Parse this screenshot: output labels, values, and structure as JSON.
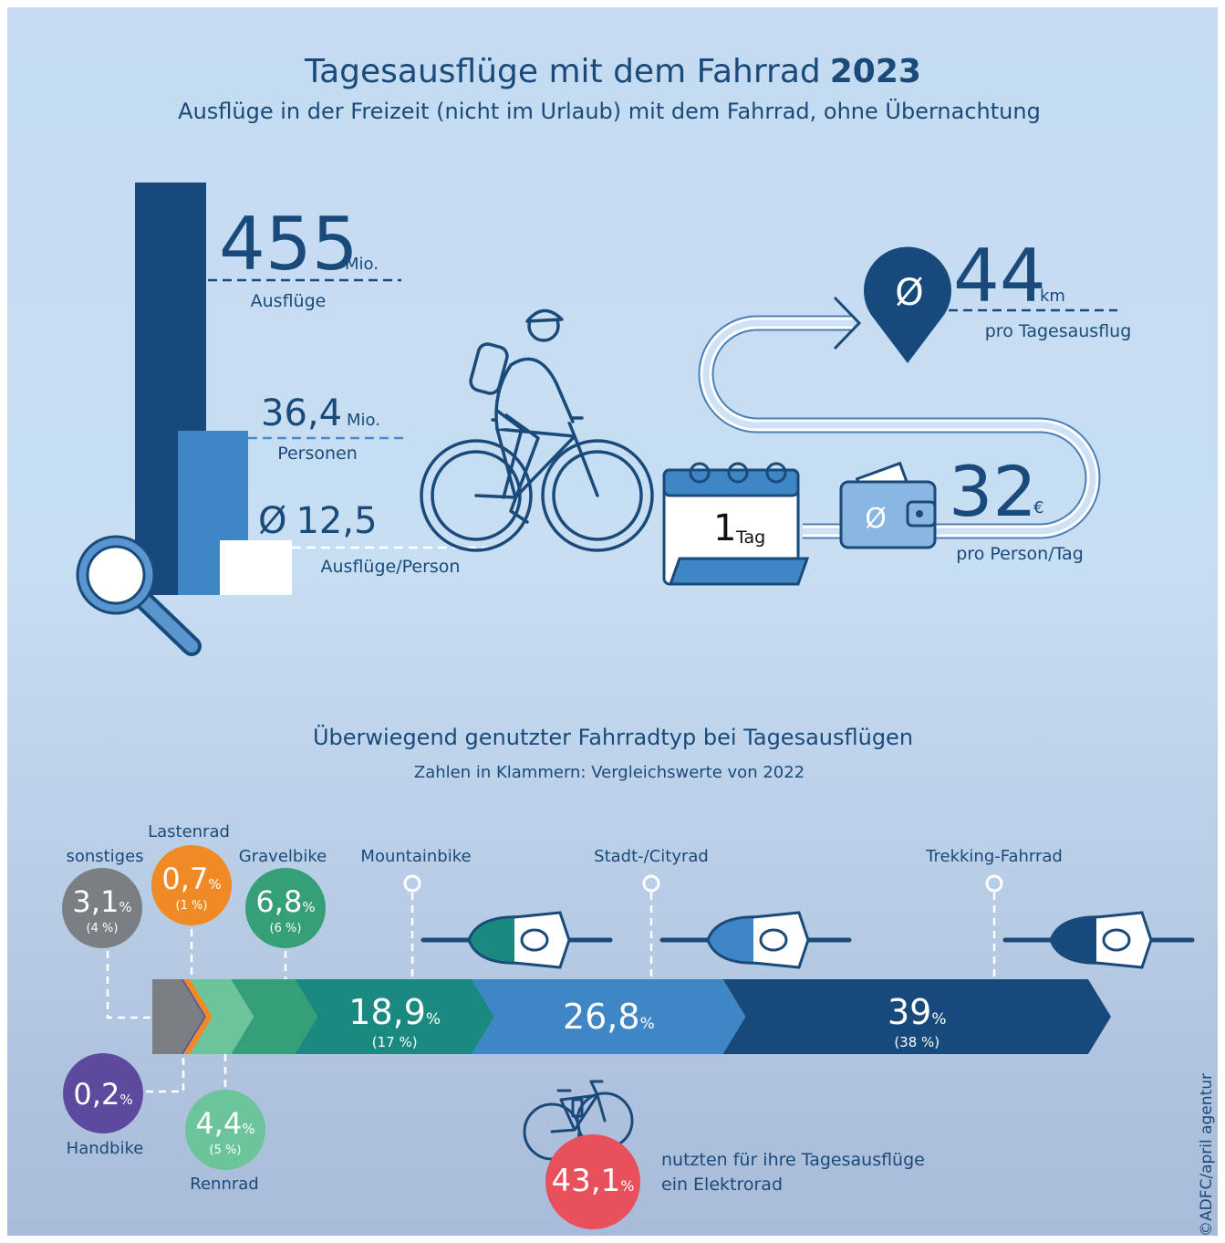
{
  "header": {
    "title": "Tagesausflüge mit dem Fahrrad",
    "title_year": "2023",
    "subtitle": "Ausflüge in der Freizeit (nicht im Urlaub) mit dem Fahrrad, ohne Übernachtung"
  },
  "stats": {
    "trips": {
      "value": "455",
      "unit": "Mio.",
      "label": "Ausflüge"
    },
    "persons": {
      "value": "36,4",
      "unit": "Mio.",
      "label": "Personen"
    },
    "per_person": {
      "prefix": "Ø",
      "value": "12,5",
      "label": "Ausflüge/Person"
    },
    "distance": {
      "prefix": "Ø",
      "value": "44",
      "unit": "km",
      "label": "pro Tagesausflug"
    },
    "day": {
      "value": "1",
      "unit": "Tag"
    },
    "spending": {
      "prefix": "Ø",
      "value": "32",
      "unit": "€",
      "label": "pro Person/Tag"
    }
  },
  "chart_data": {
    "type": "bar",
    "title": "Überwiegend genutzter Fahrradtyp bei Tagesausflügen",
    "subtitle": "Zahlen in Klammern: Vergleichswerte von 2022",
    "categories": [
      "sonstiges",
      "Handbike",
      "Lastenrad",
      "Rennrad",
      "Gravelbike",
      "Mountainbike",
      "Stadt-/Cityrad",
      "Trekking-Fahrrad"
    ],
    "values": [
      3.1,
      0.2,
      0.7,
      4.4,
      6.8,
      18.9,
      26.8,
      39
    ],
    "value_labels": [
      "3,1",
      "0,2",
      "0,7",
      "4,4",
      "6,8",
      "18,9",
      "26,8",
      "39"
    ],
    "unit": "%",
    "comparison_labels": [
      "(4 %)",
      null,
      "(1 %)",
      "(5 %)",
      "(6 %)",
      "(17 %)",
      null,
      "(38 %)"
    ],
    "colors": [
      "#7a7f84",
      "#5b4a9e",
      "#f08a24",
      "#6cc49a",
      "#35a078",
      "#1a8a80",
      "#3f86c6",
      "#17497c"
    ]
  },
  "ebike": {
    "value": "43,1",
    "unit": "%",
    "text": [
      "nutzten für ihre Tagesausflüge",
      "ein Elektrorad"
    ]
  },
  "credit": "©ADFC/april agentur"
}
